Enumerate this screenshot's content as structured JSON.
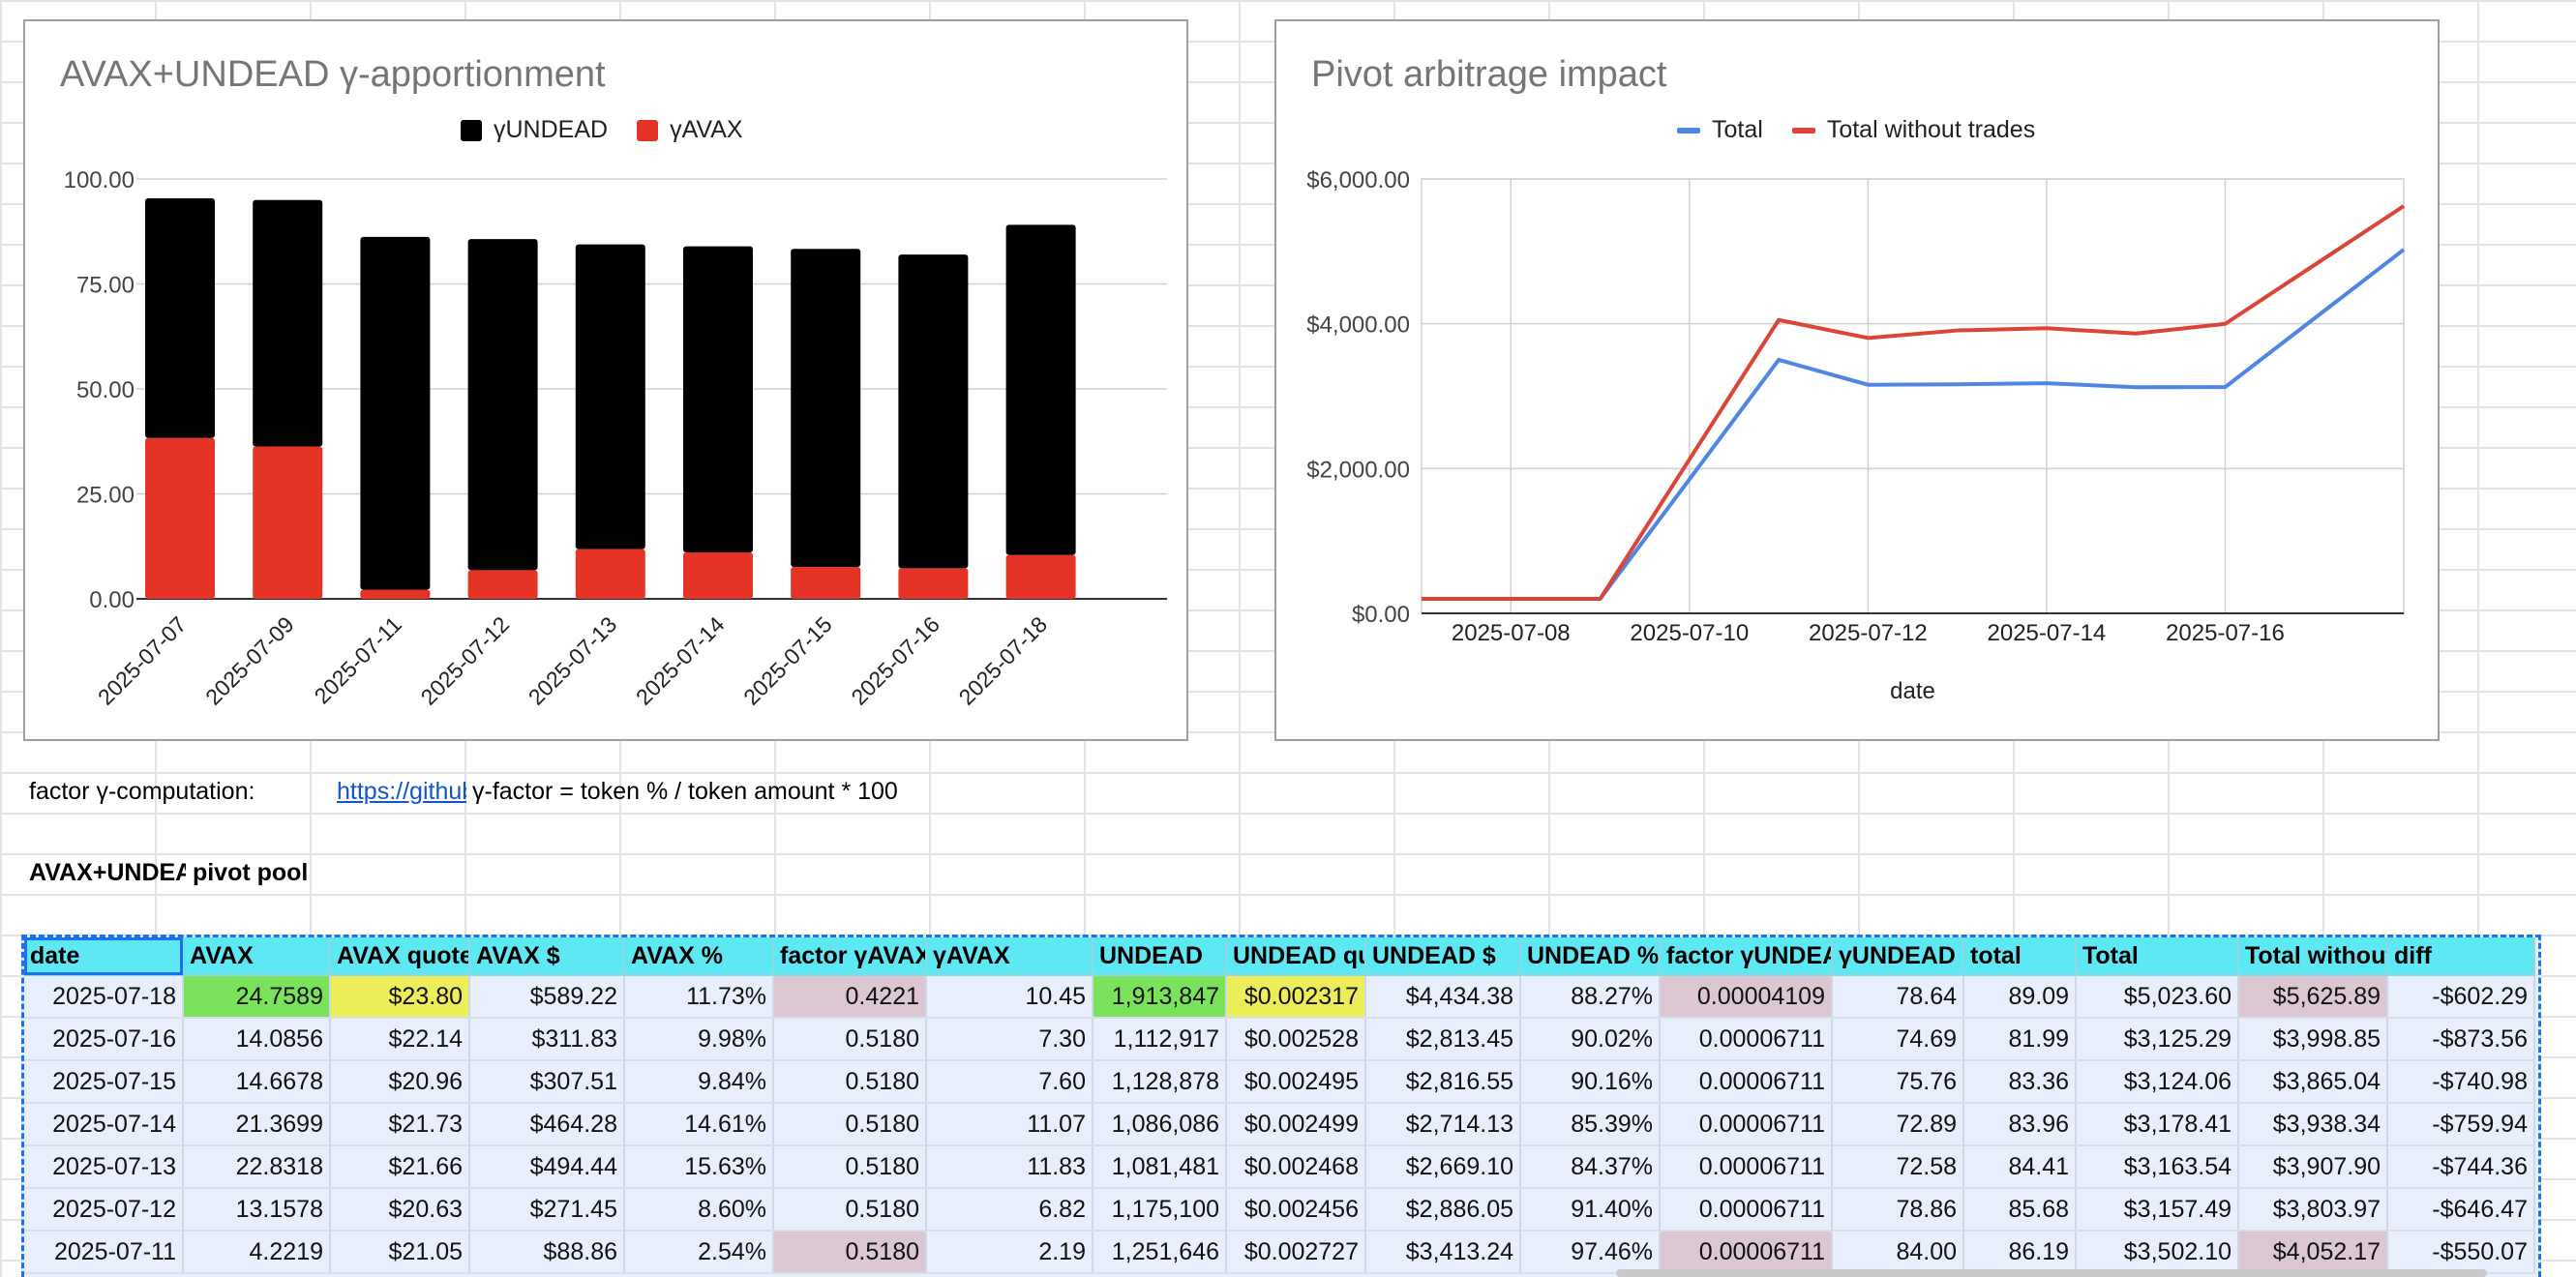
{
  "charts": [
    {
      "title": "AVAX+UNDEAD γ-apportionment",
      "legend": [
        {
          "label": "γUNDEAD",
          "color": "#000000"
        },
        {
          "label": "γAVAX",
          "color": "#e53325"
        }
      ]
    },
    {
      "title": "Pivot arbitrage impact",
      "legend": [
        {
          "label": "Total",
          "color": "#4f86e6"
        },
        {
          "label": "Total without trades",
          "color": "#db4437"
        }
      ]
    }
  ],
  "chart_data": [
    {
      "type": "bar",
      "stacked": true,
      "title": "AVAX+UNDEAD γ-apportionment",
      "categories": [
        "2025-07-07",
        "2025-07-09",
        "2025-07-11",
        "2025-07-12",
        "2025-07-13",
        "2025-07-14",
        "2025-07-15",
        "2025-07-16",
        "2025-07-18"
      ],
      "series": [
        {
          "name": "γAVAX",
          "values": [
            38.3,
            36.3,
            2.19,
            6.82,
            11.83,
            11.07,
            7.6,
            7.3,
            10.45
          ]
        },
        {
          "name": "γUNDEAD",
          "values": [
            57.1,
            58.7,
            84.0,
            78.86,
            72.58,
            72.89,
            75.76,
            74.69,
            78.64
          ]
        }
      ],
      "ylim": [
        0,
        100
      ],
      "yticks": [
        "0.00",
        "25.00",
        "50.00",
        "75.00",
        "100.00"
      ],
      "legend_position": "top"
    },
    {
      "type": "line",
      "title": "Pivot arbitrage impact",
      "xlabel": "date",
      "x": [
        "2025-07-07",
        "2025-07-08",
        "2025-07-09",
        "2025-07-11",
        "2025-07-12",
        "2025-07-13",
        "2025-07-14",
        "2025-07-15",
        "2025-07-16",
        "2025-07-18"
      ],
      "xticks": [
        "2025-07-08",
        "2025-07-10",
        "2025-07-12",
        "2025-07-14",
        "2025-07-16"
      ],
      "series": [
        {
          "name": "Total",
          "values": [
            200,
            200,
            200,
            3502.1,
            3157.49,
            3163.54,
            3178.41,
            3124.06,
            3125.29,
            5023.6
          ]
        },
        {
          "name": "Total without trades",
          "values": [
            200,
            200,
            200,
            4052.17,
            3803.97,
            3907.9,
            3938.34,
            3865.04,
            3998.85,
            5625.89
          ]
        }
      ],
      "ylim": [
        0,
        6000
      ],
      "yticks": [
        "$0.00",
        "$2,000.00",
        "$4,000.00",
        "$6,000.00"
      ],
      "legend_position": "top"
    }
  ],
  "factor_label": "factor γ-computation:",
  "factor_link": "https://github",
  "factor_formula": "γ-factor = token % / token amount * 100",
  "pool_title_a": "AVAX+UNDEAD",
  "pool_title_b": " pivot pool",
  "table": {
    "headers": [
      "date",
      "AVAX",
      "AVAX quote",
      "AVAX $",
      "AVAX %",
      "factor γAVAX",
      "γAVAX",
      "UNDEAD",
      "UNDEAD quote",
      "UNDEAD $",
      "UNDEAD %",
      "factor γUNDEAD",
      "γUNDEAD",
      "total",
      "Total",
      "Total without trades",
      "diff"
    ],
    "rows": [
      [
        "2025-07-18",
        "24.7589",
        "$23.80",
        "$589.22",
        "11.73%",
        "0.4221",
        "10.45",
        "1,913,847",
        "$0.002317",
        "$4,434.38",
        "88.27%",
        "0.00004109",
        "78.64",
        "89.09",
        "$5,023.60",
        "$5,625.89",
        "-$602.29"
      ],
      [
        "2025-07-16",
        "14.0856",
        "$22.14",
        "$311.83",
        "9.98%",
        "0.5180",
        "7.30",
        "1,112,917",
        "$0.002528",
        "$2,813.45",
        "90.02%",
        "0.00006711",
        "74.69",
        "81.99",
        "$3,125.29",
        "$3,998.85",
        "-$873.56"
      ],
      [
        "2025-07-15",
        "14.6678",
        "$20.96",
        "$307.51",
        "9.84%",
        "0.5180",
        "7.60",
        "1,128,878",
        "$0.002495",
        "$2,816.55",
        "90.16%",
        "0.00006711",
        "75.76",
        "83.36",
        "$3,124.06",
        "$3,865.04",
        "-$740.98"
      ],
      [
        "2025-07-14",
        "21.3699",
        "$21.73",
        "$464.28",
        "14.61%",
        "0.5180",
        "11.07",
        "1,086,086",
        "$0.002499",
        "$2,714.13",
        "85.39%",
        "0.00006711",
        "72.89",
        "83.96",
        "$3,178.41",
        "$3,938.34",
        "-$759.94"
      ],
      [
        "2025-07-13",
        "22.8318",
        "$21.66",
        "$494.44",
        "15.63%",
        "0.5180",
        "11.83",
        "1,081,481",
        "$0.002468",
        "$2,669.10",
        "84.37%",
        "0.00006711",
        "72.58",
        "84.41",
        "$3,163.54",
        "$3,907.90",
        "-$744.36"
      ],
      [
        "2025-07-12",
        "13.1578",
        "$20.63",
        "$271.45",
        "8.60%",
        "0.5180",
        "6.82",
        "1,175,100",
        "$0.002456",
        "$2,886.05",
        "91.40%",
        "0.00006711",
        "78.86",
        "85.68",
        "$3,157.49",
        "$3,803.97",
        "-$646.47"
      ],
      [
        "2025-07-11",
        "4.2219",
        "$21.05",
        "$88.86",
        "2.54%",
        "0.5180",
        "2.19",
        "1,251,646",
        "$0.002727",
        "$3,413.24",
        "97.46%",
        "0.00006711",
        "84.00",
        "86.19",
        "$3,502.10",
        "$4,052.17",
        "-$550.07"
      ]
    ]
  }
}
